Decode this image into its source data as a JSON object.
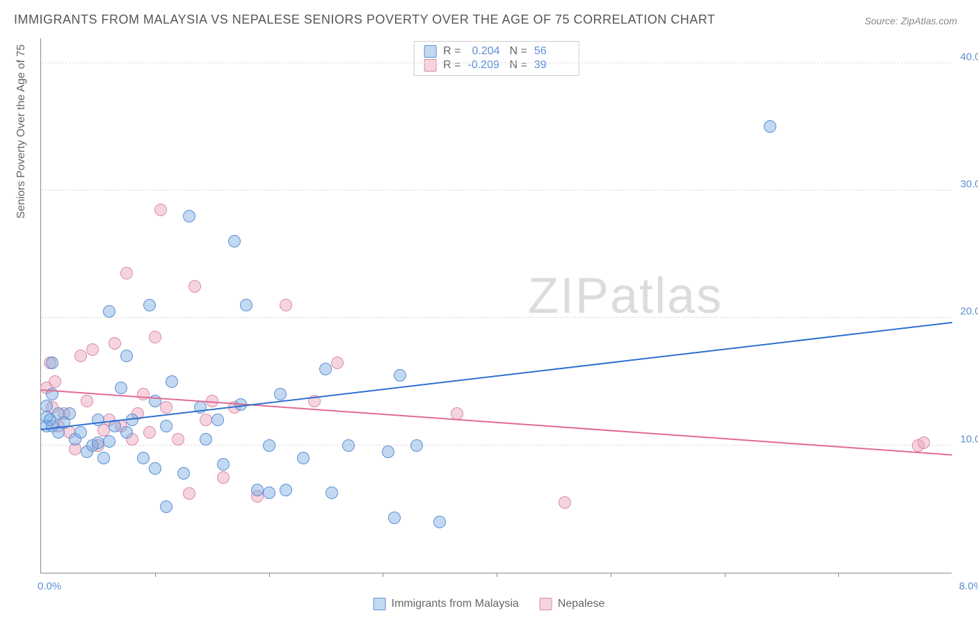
{
  "title": "IMMIGRANTS FROM MALAYSIA VS NEPALESE SENIORS POVERTY OVER THE AGE OF 75 CORRELATION CHART",
  "source": "Source: ZipAtlas.com",
  "watermark_zip": "ZIP",
  "watermark_atlas": "atlas",
  "y_axis_title": "Seniors Poverty Over the Age of 75",
  "chart": {
    "type": "scatter",
    "background_color": "#ffffff",
    "grid_color": "#dddddd",
    "axis_color": "#888888",
    "tick_label_color": "#5b8fd6",
    "xlim": [
      0,
      8
    ],
    "ylim": [
      0,
      42
    ],
    "y_ticks": [
      10,
      20,
      30,
      40
    ],
    "y_tick_labels": [
      "10.0%",
      "20.0%",
      "30.0%",
      "40.0%"
    ],
    "x_ticks_minor": [
      1,
      2,
      3,
      4,
      5,
      6,
      7
    ],
    "x_tick_label_left": "0.0%",
    "x_tick_label_right": "8.0%",
    "marker_radius": 9,
    "title_fontsize": 18,
    "label_fontsize": 16,
    "tick_fontsize": 15
  },
  "series": {
    "malaysia": {
      "label": "Immigrants from Malaysia",
      "fill": "rgba(120,170,225,0.45)",
      "stroke": "#5b8fd6",
      "trend_color": "#2e6fd0",
      "r_label": "R =",
      "r_value": "0.204",
      "n_label": "N =",
      "n_value": "56",
      "trend": {
        "x1": 0,
        "y1": 11.2,
        "x2": 8,
        "y2": 19.6
      },
      "points": [
        [
          0.05,
          12.2
        ],
        [
          0.05,
          11.5
        ],
        [
          0.05,
          13.1
        ],
        [
          0.08,
          12.0
        ],
        [
          0.1,
          11.5
        ],
        [
          0.1,
          14.0
        ],
        [
          0.1,
          16.5
        ],
        [
          0.15,
          11.0
        ],
        [
          0.15,
          12.5
        ],
        [
          0.2,
          11.8
        ],
        [
          0.25,
          12.5
        ],
        [
          0.3,
          10.5
        ],
        [
          0.35,
          11.0
        ],
        [
          0.4,
          9.5
        ],
        [
          0.45,
          10.0
        ],
        [
          0.5,
          12.0
        ],
        [
          0.5,
          10.2
        ],
        [
          0.55,
          9.0
        ],
        [
          0.6,
          20.5
        ],
        [
          0.6,
          10.3
        ],
        [
          0.65,
          11.5
        ],
        [
          0.7,
          14.5
        ],
        [
          0.75,
          11.0
        ],
        [
          0.75,
          17.0
        ],
        [
          0.8,
          12.0
        ],
        [
          0.9,
          9.0
        ],
        [
          0.95,
          21.0
        ],
        [
          1.0,
          8.2
        ],
        [
          1.0,
          13.5
        ],
        [
          1.1,
          5.2
        ],
        [
          1.1,
          11.5
        ],
        [
          1.15,
          15.0
        ],
        [
          1.25,
          7.8
        ],
        [
          1.3,
          28.0
        ],
        [
          1.4,
          13.0
        ],
        [
          1.45,
          10.5
        ],
        [
          1.55,
          12.0
        ],
        [
          1.6,
          8.5
        ],
        [
          1.7,
          26.0
        ],
        [
          1.75,
          13.2
        ],
        [
          1.8,
          21.0
        ],
        [
          1.9,
          6.5
        ],
        [
          2.0,
          10.0
        ],
        [
          2.0,
          6.3
        ],
        [
          2.1,
          14.0
        ],
        [
          2.15,
          6.5
        ],
        [
          2.3,
          9.0
        ],
        [
          2.5,
          16.0
        ],
        [
          2.55,
          6.3
        ],
        [
          2.7,
          10.0
        ],
        [
          3.05,
          9.5
        ],
        [
          3.1,
          4.3
        ],
        [
          3.15,
          15.5
        ],
        [
          3.3,
          10.0
        ],
        [
          3.5,
          4.0
        ],
        [
          6.4,
          35.0
        ]
      ]
    },
    "nepalese": {
      "label": "Nepalese",
      "fill": "rgba(235,160,185,0.45)",
      "stroke": "#d98aa8",
      "trend_color": "#e26a94",
      "r_label": "R =",
      "r_value": "-0.209",
      "n_label": "N =",
      "n_value": "39",
      "trend": {
        "x1": 0,
        "y1": 14.3,
        "x2": 8,
        "y2": 9.2
      },
      "points": [
        [
          0.05,
          14.5
        ],
        [
          0.08,
          16.5
        ],
        [
          0.1,
          13.0
        ],
        [
          0.12,
          15.0
        ],
        [
          0.15,
          11.5
        ],
        [
          0.2,
          12.5
        ],
        [
          0.25,
          11.0
        ],
        [
          0.3,
          9.7
        ],
        [
          0.35,
          17.0
        ],
        [
          0.4,
          13.5
        ],
        [
          0.45,
          17.5
        ],
        [
          0.5,
          10.0
        ],
        [
          0.55,
          11.2
        ],
        [
          0.6,
          12.0
        ],
        [
          0.65,
          18.0
        ],
        [
          0.7,
          11.5
        ],
        [
          0.75,
          23.5
        ],
        [
          0.8,
          10.5
        ],
        [
          0.85,
          12.5
        ],
        [
          0.9,
          14.0
        ],
        [
          0.95,
          11.0
        ],
        [
          1.0,
          18.5
        ],
        [
          1.05,
          28.5
        ],
        [
          1.1,
          13.0
        ],
        [
          1.2,
          10.5
        ],
        [
          1.3,
          6.2
        ],
        [
          1.35,
          22.5
        ],
        [
          1.45,
          12.0
        ],
        [
          1.5,
          13.5
        ],
        [
          1.6,
          7.5
        ],
        [
          1.7,
          13.0
        ],
        [
          1.9,
          6.0
        ],
        [
          2.15,
          21.0
        ],
        [
          2.4,
          13.5
        ],
        [
          2.6,
          16.5
        ],
        [
          3.65,
          12.5
        ],
        [
          4.6,
          5.5
        ],
        [
          7.7,
          10.0
        ],
        [
          7.75,
          10.2
        ]
      ]
    }
  }
}
